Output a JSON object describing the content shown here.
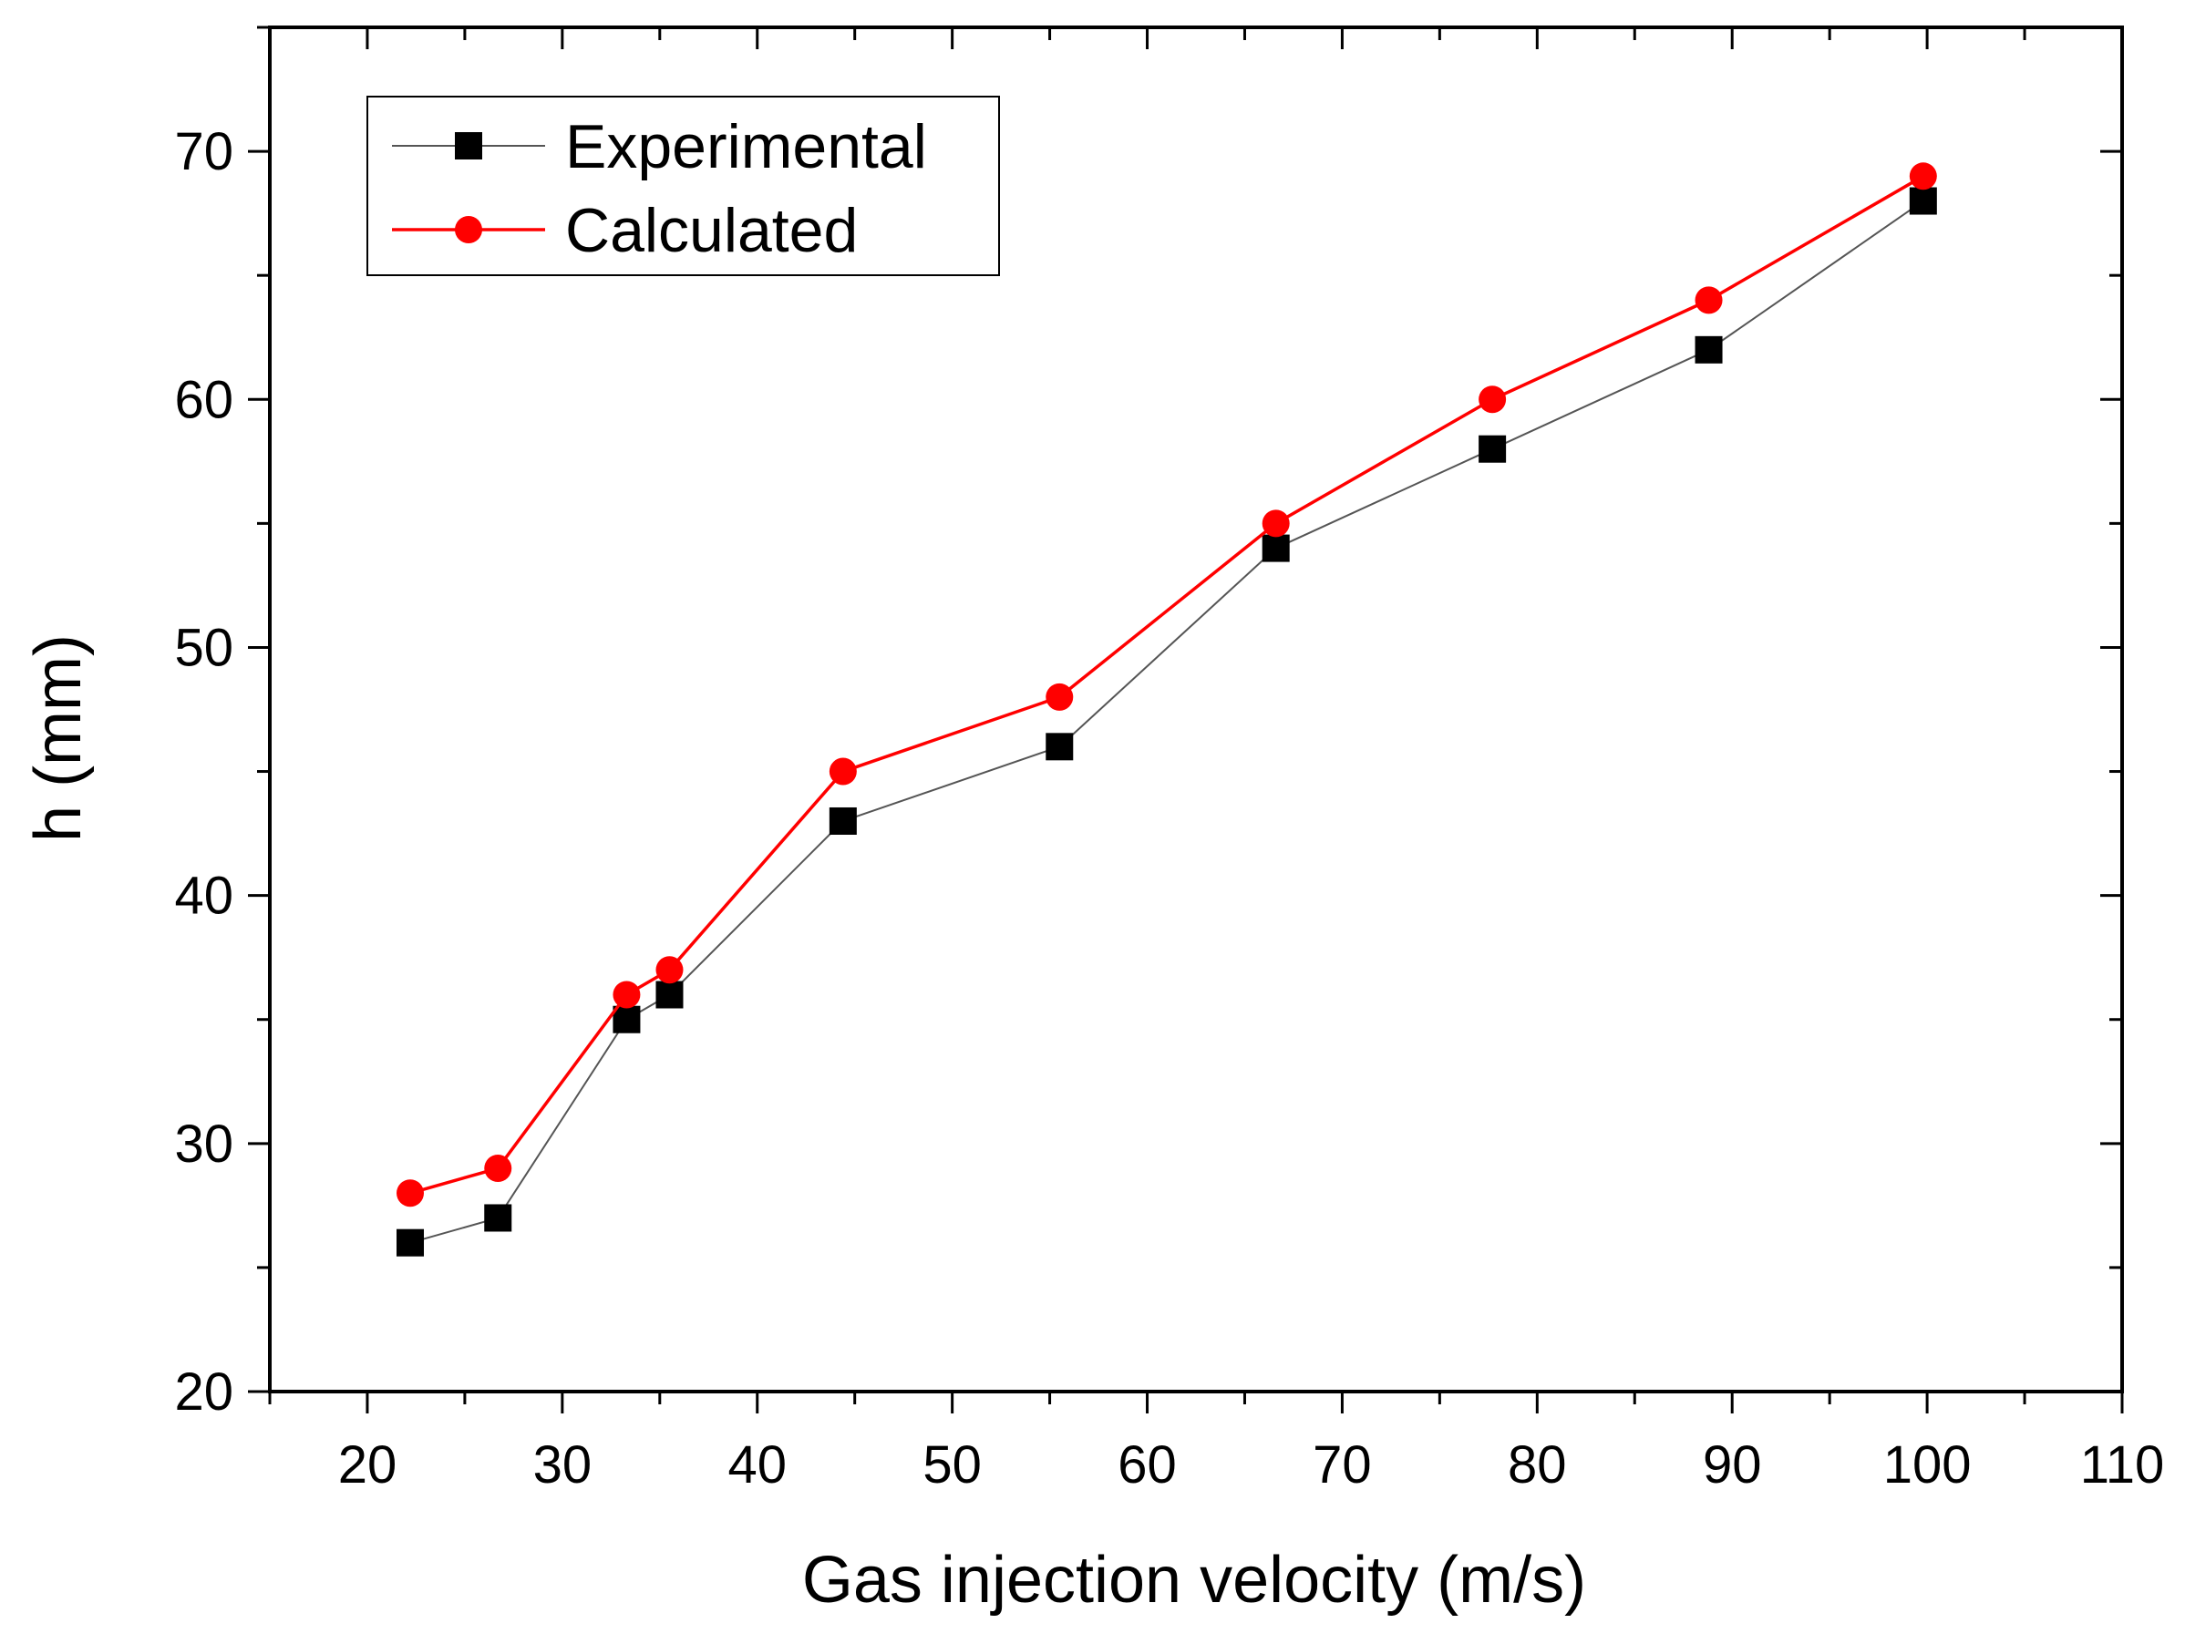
{
  "chart_data": {
    "type": "line",
    "title": "",
    "xlabel": "Gas injection velocity (m/s)",
    "ylabel": "h (mm)",
    "xlim": [
      15,
      110
    ],
    "ylim": [
      20,
      75
    ],
    "x_ticks": [
      20,
      30,
      40,
      50,
      60,
      70,
      80,
      90,
      100,
      110
    ],
    "y_ticks": [
      20,
      30,
      40,
      50,
      60,
      70
    ],
    "grid": false,
    "legend_position": "top-left",
    "series": [
      {
        "name": "Experimental",
        "color": "#000000",
        "line_color": "#555555",
        "marker": "square",
        "x": [
          22.2,
          26.7,
          33.3,
          35.5,
          44.4,
          55.5,
          66.6,
          77.7,
          88.8,
          99.8
        ],
        "y": [
          26,
          27,
          35,
          36,
          43,
          46,
          54,
          58,
          62,
          68
        ]
      },
      {
        "name": "Calculated",
        "color": "#ff0000",
        "line_color": "#ff0000",
        "marker": "circle",
        "x": [
          22.2,
          26.7,
          33.3,
          35.5,
          44.4,
          55.5,
          66.6,
          77.7,
          88.8,
          99.8
        ],
        "y": [
          28,
          29,
          36,
          37,
          45,
          48,
          55,
          60,
          64,
          69
        ]
      }
    ]
  }
}
